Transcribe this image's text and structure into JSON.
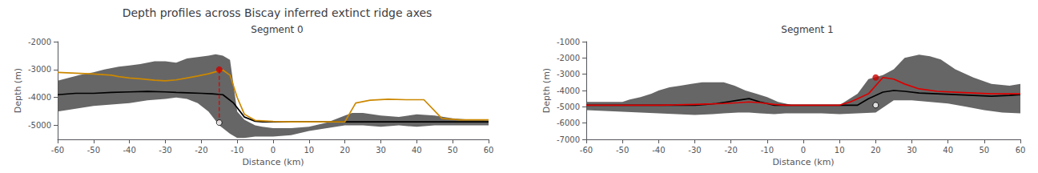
{
  "title": "Depth profiles across Biscay inferred extinct ridge axes",
  "chart_data": [
    {
      "type": "line",
      "title": "Segment 0",
      "xlabel": "Distance (km)",
      "ylabel": "Depth (m)",
      "xlim": [
        -60,
        60
      ],
      "ylim": [
        -5500,
        -2000
      ],
      "xticks": [
        -60,
        -50,
        -40,
        -30,
        -20,
        -10,
        0,
        10,
        20,
        30,
        40,
        50,
        60
      ],
      "yticks": [
        -5000,
        -4000,
        -3000,
        -2000
      ],
      "grid": false,
      "series": [
        {
          "type": "band",
          "color": "#555555",
          "x_upper": [
            -60,
            -57,
            -54,
            -50,
            -47,
            -43,
            -40,
            -37,
            -33,
            -30,
            -27,
            -24,
            -21,
            -18,
            -16,
            -14,
            -12,
            -10,
            -8,
            -5,
            -3,
            0,
            5,
            10,
            15,
            20,
            22,
            25,
            30,
            35,
            40,
            45,
            50,
            55,
            60
          ],
          "upper": [
            -3400,
            -3300,
            -3200,
            -3100,
            -3000,
            -2900,
            -2850,
            -2800,
            -2700,
            -2700,
            -2750,
            -2600,
            -2550,
            -2500,
            -2450,
            -2500,
            -2650,
            -4500,
            -4800,
            -5000,
            -5050,
            -5100,
            -5100,
            -5050,
            -4900,
            -4650,
            -4550,
            -4550,
            -4650,
            -4700,
            -4600,
            -4650,
            -4750,
            -4800,
            -4820
          ],
          "x_lower": [
            -60,
            -55,
            -50,
            -45,
            -40,
            -35,
            -30,
            -27,
            -24,
            -21,
            -18,
            -15,
            -12,
            -10,
            -8,
            -5,
            -2,
            0,
            5,
            10,
            15,
            20,
            25,
            30,
            35,
            40,
            45,
            50,
            55,
            60
          ],
          "lower": [
            -4500,
            -4400,
            -4300,
            -4250,
            -4200,
            -4100,
            -4050,
            -4000,
            -4050,
            -4200,
            -4500,
            -5000,
            -5300,
            -5450,
            -5450,
            -5400,
            -5400,
            -5400,
            -5350,
            -5200,
            -5100,
            -5000,
            -5000,
            -5050,
            -5000,
            -5050,
            -5000,
            -5000,
            -5000,
            -5000
          ]
        },
        {
          "type": "line",
          "color": "#000000",
          "x": [
            -60,
            -55,
            -50,
            -45,
            -40,
            -35,
            -30,
            -27,
            -24,
            -20,
            -17,
            -14,
            -11,
            -8,
            -5,
            -3,
            0,
            5,
            10,
            15,
            20,
            25,
            30,
            35,
            40,
            45,
            50,
            55,
            60
          ],
          "values": [
            -3900,
            -3850,
            -3850,
            -3820,
            -3800,
            -3780,
            -3800,
            -3820,
            -3830,
            -3850,
            -3870,
            -3900,
            -4200,
            -4700,
            -4850,
            -4870,
            -4870,
            -4870,
            -4870,
            -4870,
            -4870,
            -4870,
            -4870,
            -4870,
            -4870,
            -4870,
            -4870,
            -4870,
            -4870
          ]
        },
        {
          "type": "line",
          "color": "#cc8800",
          "x": [
            -60,
            -55,
            -50,
            -45,
            -43,
            -40,
            -37,
            -33,
            -30,
            -27,
            -24,
            -21,
            -18,
            -16,
            -14,
            -12,
            -10,
            -8,
            -5,
            0,
            5,
            10,
            20,
            23,
            27,
            32,
            37,
            42,
            47,
            52,
            57,
            60
          ],
          "values": [
            -3100,
            -3130,
            -3160,
            -3200,
            -3250,
            -3300,
            -3330,
            -3380,
            -3400,
            -3370,
            -3300,
            -3230,
            -3150,
            -3080,
            -3020,
            -3200,
            -4000,
            -4600,
            -4820,
            -4860,
            -4870,
            -4870,
            -4870,
            -4200,
            -4100,
            -4060,
            -4080,
            -4080,
            -4750,
            -4800,
            -4800,
            -4800
          ]
        },
        {
          "type": "line",
          "line_style": "dashed",
          "color": "#dd0000",
          "x": [
            -15,
            -15
          ],
          "values": [
            -3000,
            -4900
          ]
        },
        {
          "type": "scatter",
          "marker": "circle",
          "color": "#cc0000",
          "x": [
            -15
          ],
          "values": [
            -3000
          ]
        },
        {
          "type": "scatter",
          "marker": "open_circle",
          "color": "#000000",
          "x": [
            -15
          ],
          "values": [
            -4900
          ]
        }
      ]
    },
    {
      "type": "line",
      "title": "Segment 1",
      "xlabel": "Distance (km)",
      "ylabel": "Depth (m)",
      "xlim": [
        -60,
        60
      ],
      "ylim": [
        -7000,
        -1000
      ],
      "xticks": [
        -60,
        -50,
        -40,
        -30,
        -20,
        -10,
        0,
        10,
        20,
        30,
        40,
        50,
        60
      ],
      "yticks": [
        -7000,
        -6000,
        -5000,
        -4000,
        -3000,
        -2000,
        -1000
      ],
      "grid": false,
      "series": [
        {
          "type": "band",
          "color": "#555555",
          "x_upper": [
            -60,
            -55,
            -50,
            -48,
            -45,
            -42,
            -40,
            -37,
            -34,
            -31,
            -28,
            -25,
            -22,
            -19,
            -16,
            -13,
            -10,
            -7,
            -3,
            0,
            5,
            10,
            15,
            18,
            22,
            25,
            28,
            32,
            35,
            38,
            42,
            47,
            52,
            57,
            60
          ],
          "upper": [
            -4700,
            -4700,
            -4700,
            -4550,
            -4400,
            -4200,
            -4000,
            -3800,
            -3700,
            -3600,
            -3500,
            -3500,
            -3500,
            -3700,
            -4000,
            -4200,
            -4400,
            -4700,
            -4900,
            -4900,
            -4900,
            -4900,
            -4200,
            -3300,
            -3050,
            -2700,
            -2000,
            -1800,
            -1900,
            -2100,
            -2700,
            -3200,
            -3600,
            -3700,
            -3600
          ],
          "x_lower": [
            -60,
            -55,
            -50,
            -45,
            -40,
            -35,
            -30,
            -25,
            -22,
            -18,
            -15,
            -12,
            -8,
            -5,
            0,
            5,
            10,
            15,
            20,
            25,
            30,
            35,
            40,
            45,
            50,
            55,
            60
          ],
          "lower": [
            -5200,
            -5250,
            -5300,
            -5350,
            -5400,
            -5450,
            -5500,
            -5450,
            -5400,
            -5350,
            -5350,
            -5400,
            -5450,
            -5400,
            -5400,
            -5400,
            -5450,
            -5400,
            -5350,
            -4600,
            -4600,
            -4700,
            -4800,
            -5000,
            -5200,
            -5350,
            -5400
          ]
        },
        {
          "type": "line",
          "color": "#000000",
          "x": [
            -60,
            -55,
            -50,
            -45,
            -40,
            -37,
            -33,
            -30,
            -27,
            -24,
            -21,
            -18,
            -15,
            -12,
            -8,
            -5,
            -2,
            0,
            5,
            10,
            15,
            18,
            22,
            25,
            28,
            32,
            37,
            42,
            47,
            52,
            57,
            60
          ],
          "values": [
            -4900,
            -4900,
            -4900,
            -4900,
            -4900,
            -4900,
            -4900,
            -4900,
            -4850,
            -4800,
            -4700,
            -4600,
            -4500,
            -4700,
            -4900,
            -4900,
            -4900,
            -4900,
            -4900,
            -4900,
            -4900,
            -4500,
            -4100,
            -4000,
            -4050,
            -4150,
            -4200,
            -4250,
            -4300,
            -4350,
            -4300,
            -4250
          ]
        },
        {
          "type": "line",
          "color": "#dd0000",
          "x": [
            -60,
            -55,
            -50,
            -45,
            -40,
            -35,
            -30,
            -25,
            -22,
            -18,
            -15,
            -12,
            -8,
            -5,
            0,
            5,
            10,
            13,
            15,
            18,
            22,
            25,
            28,
            32,
            37,
            42,
            47,
            52,
            57,
            60
          ],
          "values": [
            -4900,
            -4900,
            -4900,
            -4900,
            -4900,
            -4880,
            -4850,
            -4820,
            -4800,
            -4750,
            -4700,
            -4750,
            -4850,
            -4900,
            -4900,
            -4900,
            -4900,
            -4700,
            -4500,
            -4200,
            -3200,
            -3300,
            -3600,
            -3900,
            -4050,
            -4100,
            -4150,
            -4200,
            -4200,
            -4200
          ]
        },
        {
          "type": "scatter",
          "marker": "circle",
          "color": "#cc0000",
          "x": [
            20
          ],
          "values": [
            -3200
          ]
        },
        {
          "type": "scatter",
          "marker": "open_circle",
          "color": "#000000",
          "x": [
            20
          ],
          "values": [
            -4900
          ]
        }
      ]
    }
  ]
}
